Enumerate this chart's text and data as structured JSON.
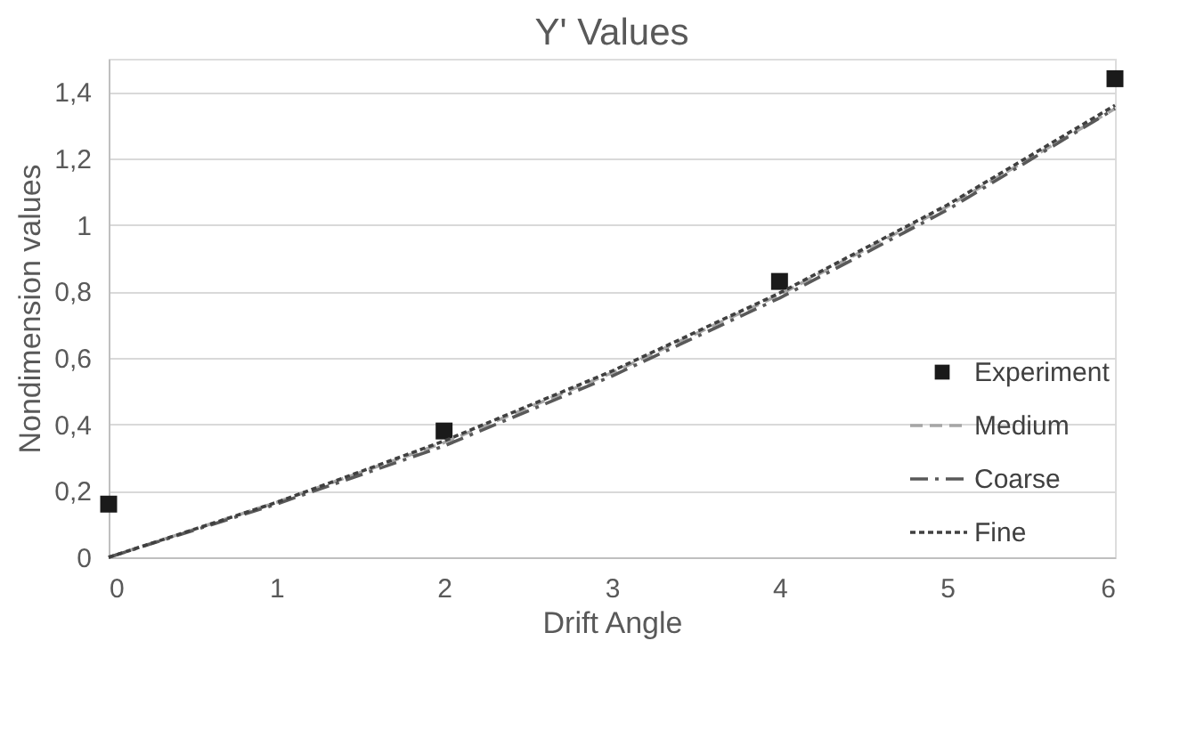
{
  "chart_data": {
    "type": "line",
    "title": "Y' Values",
    "xlabel": "Drift Angle",
    "ylabel": "Nondimension values",
    "x": [
      0,
      1,
      2,
      3,
      4,
      5,
      6
    ],
    "series": [
      {
        "name": "Experiment",
        "type": "scatter",
        "marker": "square",
        "color": "#1a1a1a",
        "x": [
          0,
          2,
          4,
          6
        ],
        "values": [
          0.16,
          0.38,
          0.83,
          1.44
        ]
      },
      {
        "name": "Medium",
        "color": "#a6a6a6",
        "line_style": "dashed",
        "values": [
          0,
          0.165,
          0.345,
          0.555,
          0.79,
          1.055,
          1.35
        ]
      },
      {
        "name": "Coarse",
        "color": "#595959",
        "line_style": "dashdot",
        "values": [
          0,
          0.16,
          0.335,
          0.545,
          0.78,
          1.045,
          1.35
        ]
      },
      {
        "name": "Fine",
        "color": "#404040",
        "line_style": "dotted",
        "values": [
          0,
          0.165,
          0.35,
          0.56,
          0.795,
          1.06,
          1.36
        ]
      }
    ],
    "xlim": [
      0,
      6
    ],
    "xticks": [
      0,
      1,
      2,
      3,
      4,
      5,
      6
    ],
    "ylim": [
      0,
      1.5
    ],
    "yticks": [
      0,
      {
        "value": 0.2,
        "label": "0,2"
      },
      {
        "value": 0.4,
        "label": "0,4"
      },
      {
        "value": 0.6,
        "label": "0,6"
      },
      {
        "value": 0.8,
        "label": "0,8"
      },
      1,
      {
        "value": 1.2,
        "label": "1,2"
      },
      {
        "value": 1.4,
        "label": "1,4"
      }
    ],
    "grid": "y",
    "legend": "right"
  }
}
